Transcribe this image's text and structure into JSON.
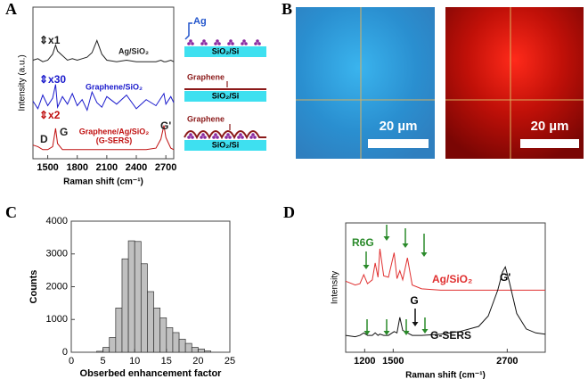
{
  "panels": [
    "A",
    "B",
    "C",
    "D"
  ],
  "schematic": {
    "layers": [
      {
        "top": "Ag",
        "substrate": "SiO₂/Si"
      },
      {
        "top": "Graphene",
        "substrate": "SiO₂/Si"
      },
      {
        "top": "Graphene",
        "substrate": "SiO₂/Si"
      }
    ]
  },
  "images": [
    {
      "scale_bar": "20 µm"
    },
    {
      "scale_bar": "20 µm"
    }
  ],
  "chart_data": [
    {
      "type": "line",
      "x_label": "Raman shift (cm⁻¹)",
      "y_label": "Intensity (a.u.)",
      "x": [
        1350,
        1400,
        1450,
        1500,
        1550,
        1580,
        1600,
        1650,
        1700,
        1750,
        1800,
        1850,
        1900,
        1950,
        2000,
        2050,
        2100,
        2200,
        2300,
        2400,
        2500,
        2600,
        2650,
        2680,
        2700,
        2750,
        2780
      ],
      "xlim": [
        1350,
        2780
      ],
      "xticks": [
        1500,
        1800,
        2100,
        2400,
        2700
      ],
      "ylim": [
        0,
        10
      ],
      "series": [
        {
          "name": "Ag/SiO₂",
          "color": "#222222",
          "values": [
            6.5,
            6.6,
            6.4,
            6.5,
            6.9,
            7.5,
            7.1,
            6.8,
            6.5,
            6.6,
            6.5,
            6.6,
            6.7,
            7.0,
            7.8,
            6.9,
            6.5,
            6.4,
            6.5,
            6.4,
            6.4,
            6.4,
            6.5,
            6.4,
            6.4,
            6.5,
            6.4
          ]
        },
        {
          "name": "Graphene/SiO₂",
          "color": "#1a1acc",
          "values": [
            3.8,
            3.3,
            4.2,
            3.5,
            4.0,
            4.9,
            3.4,
            4.1,
            3.6,
            4.3,
            3.5,
            3.9,
            3.2,
            4.4,
            3.7,
            3.4,
            4.1,
            3.6,
            4.2,
            3.3,
            3.9,
            3.5,
            4.0,
            4.3,
            3.6,
            4.1,
            3.7
          ]
        },
        {
          "name": "Graphene/Ag/SiO₂",
          "color": "#c01010",
          "values": [
            0.9,
            0.8,
            0.6,
            0.6,
            0.8,
            2.0,
            1.0,
            0.6,
            0.6,
            0.6,
            0.6,
            0.6,
            0.6,
            0.6,
            0.6,
            0.6,
            0.6,
            0.6,
            0.6,
            0.6,
            0.6,
            0.7,
            1.3,
            2.2,
            1.4,
            0.7,
            0.6
          ]
        }
      ],
      "annotations": [
        "⇕x1",
        "⇕x30",
        "⇕x2",
        "(G-SERS)",
        "D",
        "G",
        "G'"
      ]
    },
    {
      "type": "histogram",
      "x_label": "Obserbed enhancement factor",
      "y_label": "Counts",
      "bins": [
        4,
        5,
        6,
        7,
        8,
        9,
        10,
        11,
        12,
        13,
        14,
        15,
        16,
        17,
        18,
        19,
        20,
        21,
        22
      ],
      "counts": [
        30,
        150,
        450,
        1350,
        2850,
        3400,
        3380,
        2700,
        1850,
        1350,
        1050,
        750,
        600,
        400,
        270,
        150,
        100,
        40
      ],
      "color": "#c0c0c0",
      "xlim": [
        0,
        25
      ],
      "xticks": [
        0,
        5,
        10,
        15,
        20,
        25
      ],
      "ylim": [
        0,
        4000
      ],
      "yticks": [
        0,
        1000,
        2000,
        3000,
        4000
      ]
    },
    {
      "type": "line",
      "x_label": "Raman shift (cm⁻¹)",
      "y_label": "Intensity",
      "x": [
        1000,
        1100,
        1150,
        1190,
        1230,
        1280,
        1310,
        1340,
        1360,
        1400,
        1450,
        1510,
        1540,
        1570,
        1600,
        1650,
        1700,
        1800,
        2000,
        2200,
        2400,
        2500,
        2600,
        2650,
        2680,
        2720,
        2800,
        2900,
        3000,
        3100
      ],
      "xlim": [
        1000,
        3100
      ],
      "xticks": [
        1200,
        1500,
        2700
      ],
      "ylim": [
        0,
        10
      ],
      "series": [
        {
          "name": "Ag/SiO₂",
          "color": "#e03030",
          "values": [
            5.5,
            5.2,
            5.3,
            6.0,
            5.3,
            5.6,
            6.9,
            5.8,
            8.0,
            5.9,
            5.8,
            7.7,
            5.7,
            6.3,
            5.6,
            7.3,
            5.2,
            4.9,
            4.8,
            4.8,
            4.8,
            4.8,
            4.8,
            4.8,
            4.8,
            4.8,
            4.8,
            4.8,
            4.8,
            4.8
          ]
        },
        {
          "name": "G-SERS",
          "color": "#111111",
          "values": [
            1.3,
            1.2,
            1.3,
            1.5,
            1.3,
            1.3,
            1.5,
            1.3,
            1.4,
            1.3,
            1.3,
            1.6,
            1.5,
            2.7,
            1.7,
            1.5,
            1.3,
            1.3,
            1.4,
            1.6,
            2.0,
            2.8,
            4.8,
            6.2,
            6.6,
            5.5,
            3.0,
            1.8,
            1.5,
            1.4
          ]
        }
      ],
      "annotations": [
        "R6G",
        "G",
        "G'"
      ]
    }
  ]
}
